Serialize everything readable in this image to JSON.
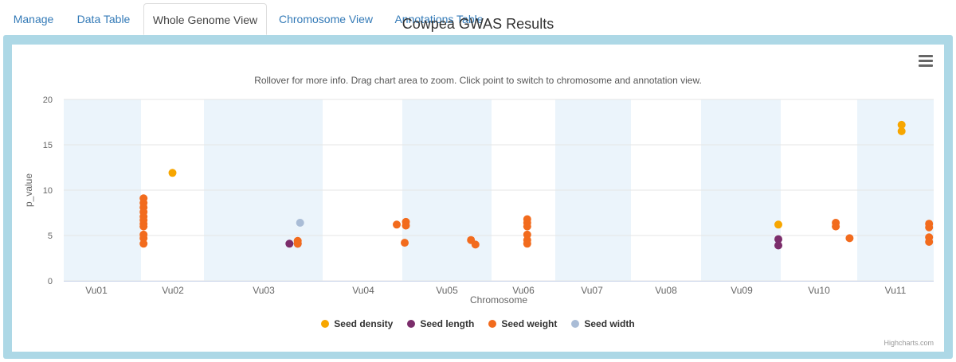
{
  "tabs": [
    {
      "label": "Manage",
      "active": false
    },
    {
      "label": "Data Table",
      "active": false
    },
    {
      "label": "Whole Genome View",
      "active": true
    },
    {
      "label": "Chromosome View",
      "active": false
    },
    {
      "label": "Annotations Table",
      "active": false
    }
  ],
  "menu_icon": "hamburger-menu-icon",
  "credits": "Highcharts.com",
  "chart_data": {
    "type": "scatter",
    "title": "Cowpea GWAS Results",
    "subtitle": "Rollover for more info. Drag chart area to zoom. Click point to switch to chromosome and annotation view.",
    "xlabel": "Chromosome",
    "ylabel": "p_value",
    "ylim": [
      0,
      20
    ],
    "yticks": [
      0,
      5,
      10,
      15,
      20
    ],
    "grid": true,
    "legend_position": "bottom-center",
    "chromosomes": [
      "Vu01",
      "Vu02",
      "Vu03",
      "Vu04",
      "Vu05",
      "Vu06",
      "Vu07",
      "Vu08",
      "Vu09",
      "Vu10",
      "Vu11"
    ],
    "chromosome_bands_shaded": [
      true,
      false,
      true,
      false,
      true,
      false,
      true,
      false,
      true,
      false,
      true
    ],
    "series": [
      {
        "name": "Seed density",
        "color": "#f7a600",
        "points": [
          {
            "chromosome": "Vu02",
            "y": 11.9
          },
          {
            "chromosome": "Vu09",
            "y": 6.2
          },
          {
            "chromosome": "Vu11",
            "y": 17.2
          },
          {
            "chromosome": "Vu11",
            "y": 16.5
          }
        ]
      },
      {
        "name": "Seed length",
        "color": "#7b2d6b",
        "points": [
          {
            "chromosome": "Vu03",
            "y": 4.1
          },
          {
            "chromosome": "Vu03",
            "y": 4.1
          },
          {
            "chromosome": "Vu09",
            "y": 4.6
          },
          {
            "chromosome": "Vu09",
            "y": 3.9
          }
        ]
      },
      {
        "name": "Seed weight",
        "color": "#f26b1d",
        "points": [
          {
            "chromosome": "Vu02",
            "y": 9.1
          },
          {
            "chromosome": "Vu02",
            "y": 8.6
          },
          {
            "chromosome": "Vu02",
            "y": 8.1
          },
          {
            "chromosome": "Vu02",
            "y": 7.6
          },
          {
            "chromosome": "Vu02",
            "y": 7.1
          },
          {
            "chromosome": "Vu02",
            "y": 6.7
          },
          {
            "chromosome": "Vu02",
            "y": 6.3
          },
          {
            "chromosome": "Vu02",
            "y": 6.0
          },
          {
            "chromosome": "Vu02",
            "y": 5.1
          },
          {
            "chromosome": "Vu02",
            "y": 4.7
          },
          {
            "chromosome": "Vu02",
            "y": 4.1
          },
          {
            "chromosome": "Vu03",
            "y": 4.4
          },
          {
            "chromosome": "Vu03",
            "y": 4.1
          },
          {
            "chromosome": "Vu04",
            "y": 6.2
          },
          {
            "chromosome": "Vu04",
            "y": 4.2
          },
          {
            "chromosome": "Vu05",
            "y": 6.5
          },
          {
            "chromosome": "Vu05",
            "y": 6.1
          },
          {
            "chromosome": "Vu05",
            "y": 4.5
          },
          {
            "chromosome": "Vu05",
            "y": 4.0
          },
          {
            "chromosome": "Vu06",
            "y": 6.8
          },
          {
            "chromosome": "Vu06",
            "y": 6.4
          },
          {
            "chromosome": "Vu06",
            "y": 6.0
          },
          {
            "chromosome": "Vu06",
            "y": 5.1
          },
          {
            "chromosome": "Vu06",
            "y": 4.5
          },
          {
            "chromosome": "Vu06",
            "y": 4.1
          },
          {
            "chromosome": "Vu10",
            "y": 6.4
          },
          {
            "chromosome": "Vu10",
            "y": 6.0
          },
          {
            "chromosome": "Vu10",
            "y": 4.7
          },
          {
            "chromosome": "Vu11",
            "y": 6.3
          },
          {
            "chromosome": "Vu11",
            "y": 5.9
          },
          {
            "chromosome": "Vu11",
            "y": 4.8
          },
          {
            "chromosome": "Vu11",
            "y": 4.3
          }
        ]
      },
      {
        "name": "Seed width",
        "color": "#a9bcd6",
        "points": [
          {
            "chromosome": "Vu03",
            "y": 6.4
          }
        ]
      }
    ]
  }
}
